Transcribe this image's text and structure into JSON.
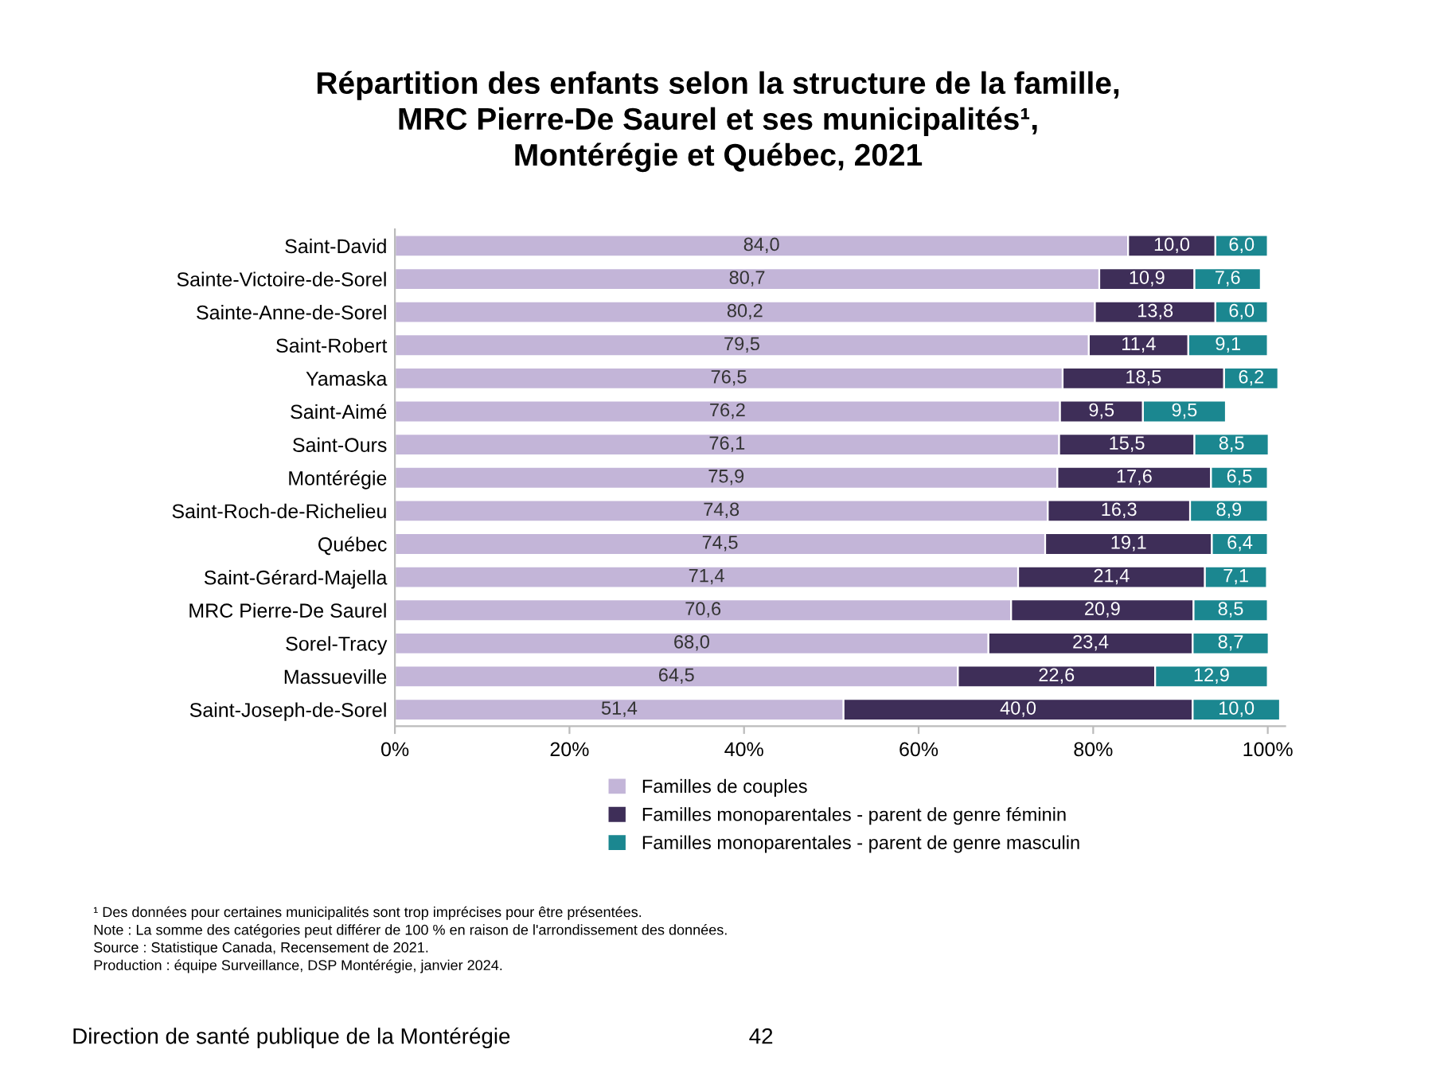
{
  "chart_data": {
    "type": "bar",
    "orientation": "horizontal",
    "stacked": true,
    "title": "Répartition des enfants selon la structure de la famille,\nMRC Pierre-De Saurel et ses municipalités¹,\nMontérégie et Québec, 2021",
    "categories": [
      "Saint-David",
      "Sainte-Victoire-de-Sorel",
      "Sainte-Anne-de-Sorel",
      "Saint-Robert",
      "Yamaska",
      "Saint-Aimé",
      "Saint-Ours",
      "Montérégie",
      "Saint-Roch-de-Richelieu",
      "Québec",
      "Saint-Gérard-Majella",
      "MRC Pierre-De Saurel",
      "Sorel-Tracy",
      "Massueville",
      "Saint-Joseph-de-Sorel"
    ],
    "series": [
      {
        "name": "Familles de couples",
        "color": "#c3b5d8",
        "values": [
          84.0,
          80.7,
          80.2,
          79.5,
          76.5,
          76.2,
          76.1,
          75.9,
          74.8,
          74.5,
          71.4,
          70.6,
          68.0,
          64.5,
          51.4
        ],
        "value_labels": [
          "84,0",
          "80,7",
          "80,2",
          "79,5",
          "76,5",
          "76,2",
          "76,1",
          "75,9",
          "74,8",
          "74,5",
          "71,4",
          "70,6",
          "68,0",
          "64,5",
          "51,4"
        ]
      },
      {
        "name": "Familles monoparentales - parent de genre féminin",
        "color": "#3e2e58",
        "values": [
          10.0,
          10.9,
          13.8,
          11.4,
          18.5,
          9.5,
          15.5,
          17.6,
          16.3,
          19.1,
          21.4,
          20.9,
          23.4,
          22.6,
          40.0
        ],
        "value_labels": [
          "10,0",
          "10,9",
          "13,8",
          "11,4",
          "18,5",
          "9,5",
          "15,5",
          "17,6",
          "16,3",
          "19,1",
          "21,4",
          "20,9",
          "23,4",
          "22,6",
          "40,0"
        ]
      },
      {
        "name": "Familles monoparentales - parent de genre masculin",
        "color": "#1b8790",
        "values": [
          6.0,
          7.6,
          6.0,
          9.1,
          6.2,
          9.5,
          8.5,
          6.5,
          8.9,
          6.4,
          7.1,
          8.5,
          8.7,
          12.9,
          10.0
        ],
        "value_labels": [
          "6,0",
          "7,6",
          "6,0",
          "9,1",
          "6,2",
          "9,5",
          "8,5",
          "6,5",
          "8,9",
          "6,4",
          "7,1",
          "8,5",
          "8,7",
          "12,9",
          "10,0"
        ]
      }
    ],
    "xlim": [
      0,
      102
    ],
    "xticks": [
      {
        "value": 0,
        "label": "0%"
      },
      {
        "value": 20,
        "label": "20%"
      },
      {
        "value": 40,
        "label": "40%"
      },
      {
        "value": 60,
        "label": "60%"
      },
      {
        "value": 80,
        "label": "80%"
      },
      {
        "value": 100,
        "label": "100%"
      }
    ],
    "grid": false,
    "legend": "bottom",
    "annotations": [
      "¹ Des données pour certaines municipalités sont trop imprécises pour être présentées.\nNote : La somme des catégories peut différer de 100 % en raison de l'arrondissement des données.\nSource : Statistique Canada, Recensement de 2021.\nProduction : équipe Surveillance, DSP Montérégie, janvier 2024.",
      "Direction de santé publique de la Montérégie",
      "42"
    ]
  }
}
